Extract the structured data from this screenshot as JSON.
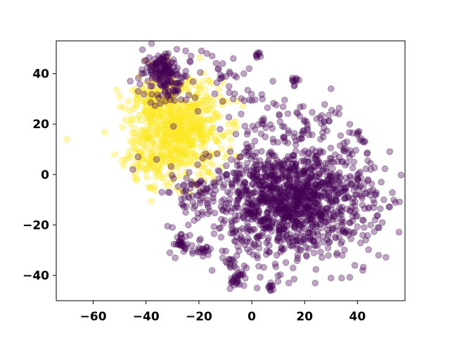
{
  "chart_data": {
    "type": "scatter",
    "title": "",
    "xlabel": "",
    "ylabel": "",
    "xlim": [
      -74,
      58
    ],
    "ylim": [
      -50,
      53
    ],
    "x_ticks": [
      -60,
      -40,
      -20,
      0,
      20,
      40
    ],
    "y_ticks": [
      -40,
      -20,
      0,
      20,
      40
    ],
    "x_tick_labels": [
      "−60",
      "−40",
      "−20",
      "0",
      "20",
      "40"
    ],
    "y_tick_labels": [
      "−40",
      "−20",
      "0",
      "20",
      "40"
    ],
    "grid": false,
    "legend": "none",
    "point_opacity": 0.35,
    "series": [
      {
        "color": "#fde725",
        "clusters": [
          {
            "center": [
              -28,
              18
            ],
            "spread": [
              8.5,
              9.5
            ],
            "count": 700
          },
          {
            "center": [
              -38,
              28
            ],
            "spread": [
              4,
              4
            ],
            "count": 60
          },
          {
            "center": [
              -40,
              5
            ],
            "spread": [
              5,
              4
            ],
            "count": 50
          }
        ],
        "points": [
          [
            -70,
            14
          ],
          [
            -50,
            31
          ],
          [
            -48,
            6
          ],
          [
            -44,
            10
          ],
          [
            -39,
            -5
          ],
          [
            -25,
            1
          ],
          [
            -22,
            -3
          ],
          [
            -18,
            -2
          ]
        ]
      },
      {
        "color": "#440154",
        "clusters": [
          {
            "center": [
              -34,
              42
            ],
            "spread": [
              3.5,
              3.5
            ],
            "count": 110
          },
          {
            "center": [
              -30,
              36
            ],
            "spread": [
              5,
              5
            ],
            "count": 70
          },
          {
            "center": [
              15,
              -10
            ],
            "spread": [
              15,
              11
            ],
            "count": 1300
          },
          {
            "center": [
              -22,
              -8
            ],
            "spread": [
              4,
              5
            ],
            "count": 40
          },
          {
            "center": [
              -27,
              -27
            ],
            "spread": [
              1.5,
              1.5
            ],
            "count": 25
          },
          {
            "center": [
              -19,
              -30
            ],
            "spread": [
              2,
              1.5
            ],
            "count": 18
          },
          {
            "center": [
              -6,
              -42
            ],
            "spread": [
              1.5,
              2
            ],
            "count": 25
          },
          {
            "center": [
              -8,
              -35
            ],
            "spread": [
              1.2,
              1.2
            ],
            "count": 12
          },
          {
            "center": [
              8,
              -44
            ],
            "spread": [
              1.5,
              1
            ],
            "count": 10
          },
          {
            "center": [
              28,
              23
            ],
            "spread": [
              3,
              2
            ],
            "count": 14
          },
          {
            "center": [
              14,
              26
            ],
            "spread": [
              4,
              2
            ],
            "count": 14
          },
          {
            "center": [
              -1,
              31
            ],
            "spread": [
              3,
              2
            ],
            "count": 10
          },
          {
            "center": [
              40,
              15
            ],
            "spread": [
              2,
              2
            ],
            "count": 10
          },
          {
            "center": [
              -8,
              38
            ],
            "spread": [
              3,
              2
            ],
            "count": 8
          },
          {
            "center": [
              17,
              37
            ],
            "spread": [
              2,
              1
            ],
            "count": 10
          },
          {
            "center": [
              2,
              47
            ],
            "spread": [
              1,
              1
            ],
            "count": 8
          },
          {
            "center": [
              3,
              20
            ],
            "spread": [
              2,
              2
            ],
            "count": 10
          },
          {
            "center": [
              19,
              17
            ],
            "spread": [
              3,
              2
            ],
            "count": 10
          },
          {
            "center": [
              -11,
              40
            ],
            "spread": [
              3,
              3
            ],
            "count": 6
          }
        ],
        "points": [
          [
            -19,
            49
          ],
          [
            -17,
            48
          ],
          [
            -15,
            47
          ],
          [
            -11,
            44
          ],
          [
            -12,
            38
          ],
          [
            -14,
            32
          ],
          [
            -11,
            29
          ],
          [
            -7,
            30
          ],
          [
            -3,
            40
          ],
          [
            8,
            37
          ],
          [
            -12,
            18
          ],
          [
            -6,
            16
          ],
          [
            -4,
            24
          ],
          [
            4,
            30
          ],
          [
            -7,
            46
          ],
          [
            -1,
            42
          ],
          [
            30,
            34
          ],
          [
            33,
            24
          ],
          [
            36,
            13
          ],
          [
            45,
            2
          ],
          [
            49,
            -3
          ],
          [
            50,
            -10
          ],
          [
            47,
            -8
          ],
          [
            48,
            -32
          ],
          [
            42,
            -38
          ],
          [
            39,
            -36
          ],
          [
            34,
            -41
          ],
          [
            30,
            -41
          ],
          [
            24,
            -43
          ],
          [
            14,
            -43
          ],
          [
            -2,
            -37
          ],
          [
            -11,
            -33
          ],
          [
            -24,
            -20
          ],
          [
            -25,
            -15
          ],
          [
            -26,
            -12
          ],
          [
            -34,
            -7
          ],
          [
            -36,
            6
          ],
          [
            -45,
            2
          ],
          [
            -43,
            7
          ],
          [
            -39,
            44
          ],
          [
            -41,
            40
          ],
          [
            -43,
            33
          ],
          [
            -46,
            37
          ],
          [
            -32,
            47
          ],
          [
            -25,
            49
          ],
          [
            -23,
            47
          ],
          [
            -25,
            41
          ],
          [
            5,
            4
          ],
          [
            12,
            4
          ],
          [
            23,
            10
          ],
          [
            34,
            5
          ],
          [
            38,
            8
          ],
          [
            44,
            -2
          ],
          [
            45,
            -20
          ],
          [
            42,
            -24
          ],
          [
            2,
            -45
          ],
          [
            7,
            -46
          ],
          [
            -3,
            -44
          ],
          [
            -15,
            -38
          ],
          [
            -20,
            -29
          ],
          [
            -30,
            -21
          ],
          [
            -31,
            -31
          ],
          [
            -29,
            -33
          ],
          [
            20,
            5
          ],
          [
            26,
            14
          ]
        ]
      }
    ]
  }
}
